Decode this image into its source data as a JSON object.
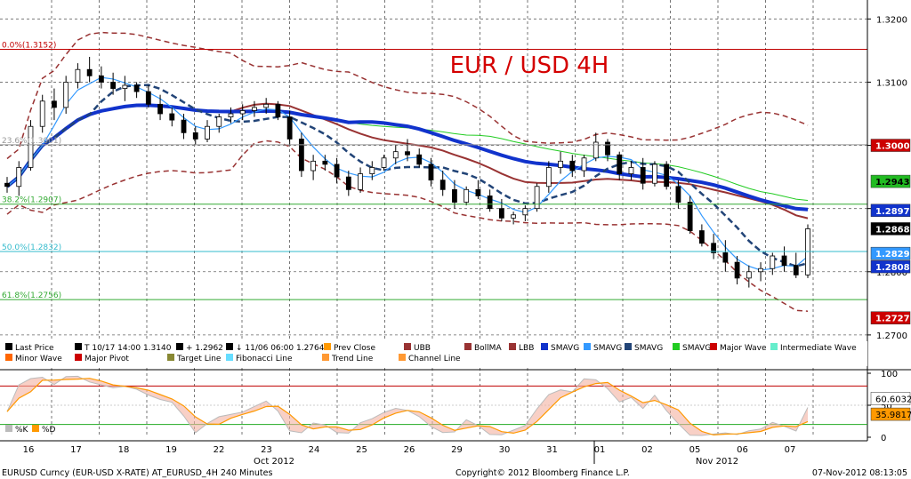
{
  "chart_data": {
    "type": "candlestick",
    "title": "EUR / USD 4H",
    "title_color": "#d40000",
    "price_axis": {
      "ylim": [
        1.269,
        1.323
      ],
      "ticks": [
        "1.3200",
        "1.3100",
        "1.3000",
        "1.2900",
        "1.2800",
        "1.2700"
      ]
    },
    "oscillator_axis": {
      "ylim": [
        0,
        100
      ],
      "ticks": [
        "100",
        "50",
        "0"
      ]
    },
    "fib_levels": [
      {
        "label": "0.0%(1.3152)",
        "value": 1.3152,
        "color": "#c00000"
      },
      {
        "label": "23.6%(1.3001)",
        "value": 1.3001,
        "color": "#999999"
      },
      {
        "label": "38.2%(1.2907)",
        "value": 1.2907,
        "color": "#33aa33"
      },
      {
        "label": "50.0%(1.2832)",
        "value": 1.2832,
        "color": "#33bbcc"
      },
      {
        "label": "61.8%(1.2756)",
        "value": 1.2756,
        "color": "#33aa33"
      }
    ],
    "price_tags": [
      {
        "label": "1.3000",
        "value": 1.3,
        "bg": "#cc0000",
        "fg": "#ffffff"
      },
      {
        "label": "1.2943",
        "value": 1.2943,
        "bg": "#22bb22",
        "fg": "#000000"
      },
      {
        "label": "1.2897",
        "value": 1.2897,
        "bg": "#1133cc",
        "fg": "#ffffff"
      },
      {
        "label": "1.2868",
        "value": 1.2868,
        "bg": "#000000",
        "fg": "#ffffff"
      },
      {
        "label": "1.2829",
        "value": 1.2829,
        "bg": "#3399ff",
        "fg": "#ffffff"
      },
      {
        "label": "1.2808",
        "value": 1.2808,
        "bg": "#1133cc",
        "fg": "#ffffff"
      },
      {
        "label": "1.2727",
        "value": 1.2727,
        "bg": "#cc0000",
        "fg": "#ffffff"
      }
    ],
    "osc_tags": [
      {
        "label": "60.6032",
        "value": 60.6,
        "bg": "#ffffff",
        "fg": "#000000"
      },
      {
        "label": "35.9817",
        "value": 36.0,
        "bg": "#ff9900",
        "fg": "#000000"
      }
    ],
    "x_tick_labels": [
      "16",
      "17",
      "18",
      "19",
      "22",
      "23",
      "24",
      "25",
      "26",
      "29",
      "30",
      "31",
      "01",
      "02",
      "05",
      "06",
      "07"
    ],
    "month_labels": [
      "Oct 2012",
      "Nov 2012"
    ],
    "candles": [
      [
        1.294,
        1.295,
        1.2925,
        1.2935
      ],
      [
        1.2935,
        1.2975,
        1.292,
        1.2965
      ],
      [
        1.2965,
        1.304,
        1.296,
        1.303
      ],
      [
        1.303,
        1.308,
        1.302,
        1.307
      ],
      [
        1.307,
        1.309,
        1.304,
        1.306
      ],
      [
        1.306,
        1.311,
        1.305,
        1.31
      ],
      [
        1.31,
        1.313,
        1.309,
        1.312
      ],
      [
        1.312,
        1.314,
        1.31,
        1.311
      ],
      [
        1.311,
        1.3125,
        1.309,
        1.31
      ],
      [
        1.31,
        1.3115,
        1.308,
        1.309
      ],
      [
        1.309,
        1.311,
        1.307,
        1.3095
      ],
      [
        1.3095,
        1.31,
        1.3075,
        1.3085
      ],
      [
        1.3085,
        1.3095,
        1.306,
        1.3065
      ],
      [
        1.3065,
        1.308,
        1.304,
        1.305
      ],
      [
        1.305,
        1.306,
        1.303,
        1.304
      ],
      [
        1.304,
        1.305,
        1.301,
        1.302
      ],
      [
        1.302,
        1.303,
        1.3,
        1.301
      ],
      [
        1.301,
        1.304,
        1.3005,
        1.303
      ],
      [
        1.303,
        1.305,
        1.302,
        1.3045
      ],
      [
        1.3045,
        1.306,
        1.3035,
        1.305
      ],
      [
        1.305,
        1.3065,
        1.304,
        1.3055
      ],
      [
        1.3055,
        1.307,
        1.3045,
        1.306
      ],
      [
        1.306,
        1.3075,
        1.305,
        1.3065
      ],
      [
        1.3065,
        1.307,
        1.304,
        1.3045
      ],
      [
        1.3045,
        1.3055,
        1.3,
        1.301
      ],
      [
        1.301,
        1.302,
        1.295,
        1.296
      ],
      [
        1.296,
        1.2985,
        1.2945,
        1.2975
      ],
      [
        1.2975,
        1.2985,
        1.296,
        1.297
      ],
      [
        1.297,
        1.298,
        1.294,
        1.295
      ],
      [
        1.295,
        1.296,
        1.292,
        1.293
      ],
      [
        1.293,
        1.2965,
        1.2925,
        1.2955
      ],
      [
        1.2955,
        1.2975,
        1.2945,
        1.2965
      ],
      [
        1.2965,
        1.2985,
        1.296,
        1.298
      ],
      [
        1.298,
        1.3,
        1.297,
        1.299
      ],
      [
        1.299,
        1.301,
        1.2975,
        1.2985
      ],
      [
        1.2985,
        1.2995,
        1.2965,
        1.297
      ],
      [
        1.297,
        1.298,
        1.2935,
        1.2945
      ],
      [
        1.2945,
        1.296,
        1.292,
        1.293
      ],
      [
        1.293,
        1.2945,
        1.29,
        1.291
      ],
      [
        1.291,
        1.2935,
        1.2905,
        1.293
      ],
      [
        1.293,
        1.2945,
        1.2915,
        1.292
      ],
      [
        1.292,
        1.293,
        1.2895,
        1.29
      ],
      [
        1.29,
        1.2915,
        1.288,
        1.2885
      ],
      [
        1.2885,
        1.2895,
        1.2875,
        1.289
      ],
      [
        1.289,
        1.2905,
        1.288,
        1.29
      ],
      [
        1.29,
        1.294,
        1.2895,
        1.2935
      ],
      [
        1.2935,
        1.2975,
        1.2925,
        1.2965
      ],
      [
        1.2965,
        1.299,
        1.2955,
        1.2975
      ],
      [
        1.2975,
        1.2985,
        1.295,
        1.296
      ],
      [
        1.296,
        1.2985,
        1.295,
        1.298
      ],
      [
        1.298,
        1.302,
        1.2975,
        1.3005
      ],
      [
        1.3005,
        1.301,
        1.2975,
        1.2985
      ],
      [
        1.2985,
        1.299,
        1.2945,
        1.2955
      ],
      [
        1.2955,
        1.2975,
        1.2945,
        1.2965
      ],
      [
        1.2965,
        1.298,
        1.293,
        1.294
      ],
      [
        1.294,
        1.2975,
        1.2935,
        1.297
      ],
      [
        1.297,
        1.2975,
        1.293,
        1.2935
      ],
      [
        1.2935,
        1.2945,
        1.29,
        1.291
      ],
      [
        1.291,
        1.292,
        1.286,
        1.2865
      ],
      [
        1.2865,
        1.2875,
        1.284,
        1.2845
      ],
      [
        1.2845,
        1.286,
        1.282,
        1.283
      ],
      [
        1.283,
        1.285,
        1.28,
        1.2815
      ],
      [
        1.2815,
        1.2825,
        1.278,
        1.279
      ],
      [
        1.279,
        1.281,
        1.2775,
        1.28
      ],
      [
        1.28,
        1.2815,
        1.2785,
        1.2805
      ],
      [
        1.2805,
        1.283,
        1.2795,
        1.2825
      ],
      [
        1.2825,
        1.284,
        1.28,
        1.281
      ],
      [
        1.281,
        1.283,
        1.279,
        1.2795
      ],
      [
        1.2795,
        1.2875,
        1.279,
        1.2868
      ]
    ],
    "legend": [
      {
        "label": "Last Price",
        "color": "#000000"
      },
      {
        "label": "T 10/17 14:00 1.3140",
        "color": "#000000"
      },
      {
        "label": "+ 1.2962",
        "color": "#000000"
      },
      {
        "label": "↓ 11/06 06:00 1.2764",
        "color": "#000000"
      },
      {
        "label": "Prev Close",
        "color": "#ff9900"
      },
      {
        "label": "UBB",
        "color": "#993333"
      },
      {
        "label": "BollMA",
        "color": "#993333"
      },
      {
        "label": "LBB",
        "color": "#993333"
      },
      {
        "label": "SMAVG",
        "color": "#1133cc"
      },
      {
        "label": "SMAVG",
        "color": "#3399ff"
      },
      {
        "label": "SMAVG",
        "color": "#224477"
      },
      {
        "label": "SMAVG",
        "color": "#22cc22"
      },
      {
        "label": "Major Wave",
        "color": "#cc0000"
      },
      {
        "label": "Intermediate Wave",
        "color": "#66eecc"
      },
      {
        "label": "Minor Wave",
        "color": "#ff6600"
      },
      {
        "label": "Major Pivot",
        "color": "#cc0000"
      },
      {
        "label": "Target Line",
        "color": "#888833"
      },
      {
        "label": "Fibonacci Line",
        "color": "#66ddff"
      },
      {
        "label": "Trend Line",
        "color": "#ff9933"
      },
      {
        "label": "Channel Line",
        "color": "#ff9933"
      }
    ],
    "osc_legend": [
      "%K",
      "%D"
    ],
    "footer": {
      "left": "EURUSD Curncy (EUR-USD X-RATE) AT_EURUSD_4H 240 Minutes",
      "center": "Copyright© 2012 Bloomberg Finance L.P.",
      "right": "07-Nov-2012 08:13:05"
    }
  }
}
